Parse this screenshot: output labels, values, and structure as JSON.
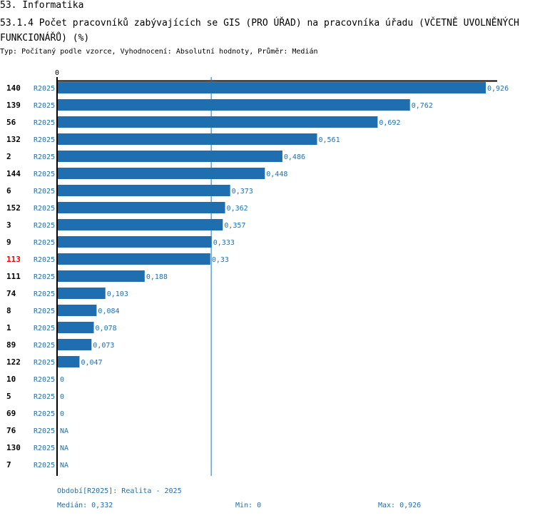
{
  "header": {
    "section": "53. Informatika",
    "title": "53.1.4 Počet pracovníků zabývajících se GIS (PRO ÚŘAD) na pracovníka úřadu (VČETNĚ UVOLNĚNÝCH FUNKCIONÁŘŮ) (%)",
    "subtitle": "Typ: Počítaný podle vzorce, Vyhodnocení: Absolutní hodnoty, Průměr: Medián"
  },
  "colors": {
    "bar": "#1f6fb0",
    "highlight": "#ff0000",
    "text_blue": "#1f6fb0"
  },
  "chart_data": {
    "type": "bar",
    "orientation": "horizontal",
    "axis_zero_label": "0",
    "period_label": "R2025",
    "highlight_category": "113",
    "median_line": 0.332,
    "xlim": [
      0,
      0.926
    ],
    "rows": [
      {
        "category": "140",
        "period": "R2025",
        "value": 0.926,
        "label": "0,926"
      },
      {
        "category": "139",
        "period": "R2025",
        "value": 0.762,
        "label": "0,762"
      },
      {
        "category": "56",
        "period": "R2025",
        "value": 0.692,
        "label": "0,692"
      },
      {
        "category": "132",
        "period": "R2025",
        "value": 0.561,
        "label": "0,561"
      },
      {
        "category": "2",
        "period": "R2025",
        "value": 0.486,
        "label": "0,486"
      },
      {
        "category": "144",
        "period": "R2025",
        "value": 0.448,
        "label": "0,448"
      },
      {
        "category": "6",
        "period": "R2025",
        "value": 0.373,
        "label": "0,373"
      },
      {
        "category": "152",
        "period": "R2025",
        "value": 0.362,
        "label": "0,362"
      },
      {
        "category": "3",
        "period": "R2025",
        "value": 0.357,
        "label": "0,357"
      },
      {
        "category": "9",
        "period": "R2025",
        "value": 0.333,
        "label": "0,333"
      },
      {
        "category": "113",
        "period": "R2025",
        "value": 0.33,
        "label": "0,33"
      },
      {
        "category": "111",
        "period": "R2025",
        "value": 0.188,
        "label": "0,188"
      },
      {
        "category": "74",
        "period": "R2025",
        "value": 0.103,
        "label": "0,103"
      },
      {
        "category": "8",
        "period": "R2025",
        "value": 0.084,
        "label": "0,084"
      },
      {
        "category": "1",
        "period": "R2025",
        "value": 0.078,
        "label": "0,078"
      },
      {
        "category": "89",
        "period": "R2025",
        "value": 0.073,
        "label": "0,073"
      },
      {
        "category": "122",
        "period": "R2025",
        "value": 0.047,
        "label": "0,047"
      },
      {
        "category": "10",
        "period": "R2025",
        "value": 0,
        "label": "0"
      },
      {
        "category": "5",
        "period": "R2025",
        "value": 0,
        "label": "0"
      },
      {
        "category": "69",
        "period": "R2025",
        "value": 0,
        "label": "0"
      },
      {
        "category": "76",
        "period": "R2025",
        "value": null,
        "label": "NA"
      },
      {
        "category": "130",
        "period": "R2025",
        "value": null,
        "label": "NA"
      },
      {
        "category": "7",
        "period": "R2025",
        "value": null,
        "label": "NA"
      }
    ]
  },
  "footer": {
    "period_note": "Období[R2025]: Realita - 2025",
    "median": "Medián: 0,332",
    "min": "Min: 0",
    "max": "Max: 0,926"
  }
}
